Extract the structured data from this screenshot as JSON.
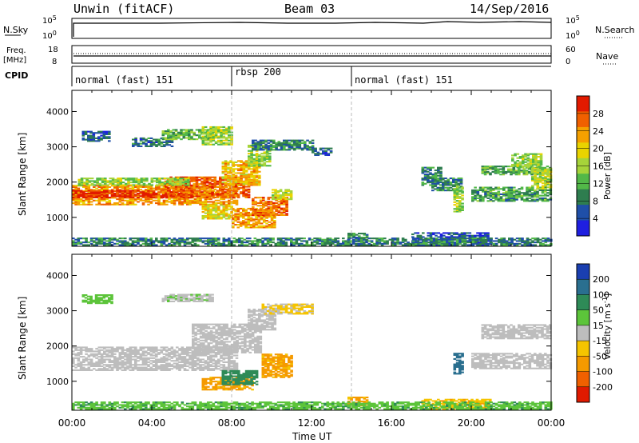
{
  "header": {
    "station": "Unwin (fitACF)",
    "beam": "Beam 03",
    "date": "14/Sep/2016"
  },
  "top_panels": {
    "nsky_label": "N.Sky",
    "nsky_ticks": [
      "10^5",
      "10^0"
    ],
    "nsearch_label": "N.Search",
    "nsearch_ticks": [
      "10^5",
      "10^0"
    ],
    "freq_label_1": "Freq.",
    "freq_label_2": "[MHz]",
    "freq_ticks": [
      "18",
      "8"
    ],
    "nave_label": "Nave",
    "nave_ticks": [
      "60",
      "0"
    ],
    "cpid_label": "CPID",
    "cpid_segments": [
      {
        "label": "normal (fast) 151",
        "start": 0,
        "end": 8
      },
      {
        "label": "rbsp 200",
        "start": 8,
        "end": 14
      },
      {
        "label": "normal (fast) 151",
        "start": 14,
        "end": 24
      }
    ]
  },
  "chart_data": [
    {
      "type": "heatmap",
      "title": "",
      "xlabel": "Time UT",
      "ylabel": "Slant Range [km]",
      "xlim": [
        0,
        24
      ],
      "ylim": [
        180,
        4600
      ],
      "x_ticks": [
        "00:00",
        "04:00",
        "08:00",
        "12:00",
        "16:00",
        "20:00",
        "00:00"
      ],
      "y_ticks": [
        "1000",
        "2000",
        "3000",
        "4000"
      ],
      "colorbar": {
        "label": "Power [dB]",
        "ticks": [
          "4",
          "8",
          "12",
          "16",
          "20",
          "24",
          "28"
        ],
        "range": [
          0,
          30
        ],
        "colors": [
          "#1f1fe0",
          "#1f4fa8",
          "#2e7d4f",
          "#52b848",
          "#a6d43a",
          "#e9d400",
          "#f5a000",
          "#f06000",
          "#e21a00"
        ]
      },
      "regions": [
        {
          "t": [
            0.0,
            8.2
          ],
          "r": [
            1350,
            1900
          ],
          "v": 22
        },
        {
          "t": [
            0.0,
            6.0
          ],
          "r": [
            1550,
            1750
          ],
          "v": 28
        },
        {
          "t": [
            4.5,
            8.8
          ],
          "r": [
            1550,
            2150
          ],
          "v": 25
        },
        {
          "t": [
            7.5,
            9.4
          ],
          "r": [
            1900,
            2600
          ],
          "v": 20
        },
        {
          "t": [
            8.8,
            9.9
          ],
          "r": [
            2450,
            3050
          ],
          "v": 14
        },
        {
          "t": [
            0.3,
            5.8
          ],
          "r": [
            1900,
            2100
          ],
          "v": 14
        },
        {
          "t": [
            6.5,
            8.0
          ],
          "r": [
            950,
            1350
          ],
          "v": 18
        },
        {
          "t": [
            8.0,
            10.2
          ],
          "r": [
            700,
            1250
          ],
          "v": 22
        },
        {
          "t": [
            9.0,
            10.8
          ],
          "r": [
            1050,
            1550
          ],
          "v": 24
        },
        {
          "t": [
            10.0,
            11.0
          ],
          "r": [
            1500,
            1800
          ],
          "v": 16
        },
        {
          "t": [
            0.5,
            1.8
          ],
          "r": [
            3150,
            3450
          ],
          "v": 6
        },
        {
          "t": [
            3.0,
            5.0
          ],
          "r": [
            3000,
            3250
          ],
          "v": 7
        },
        {
          "t": [
            4.5,
            7.0
          ],
          "r": [
            3200,
            3500
          ],
          "v": 12
        },
        {
          "t": [
            6.5,
            8.0
          ],
          "r": [
            3050,
            3550
          ],
          "v": 15
        },
        {
          "t": [
            9.0,
            12.0
          ],
          "r": [
            2900,
            3200
          ],
          "v": 8
        },
        {
          "t": [
            12.0,
            13.0
          ],
          "r": [
            2750,
            2950
          ],
          "v": 6
        },
        {
          "t": [
            13.8,
            14.8
          ],
          "r": [
            300,
            550
          ],
          "v": 10
        },
        {
          "t": [
            17.5,
            18.5
          ],
          "r": [
            1900,
            2400
          ],
          "v": 8
        },
        {
          "t": [
            18.0,
            19.5
          ],
          "r": [
            1750,
            2100
          ],
          "v": 8
        },
        {
          "t": [
            19.1,
            19.6
          ],
          "r": [
            1150,
            1900
          ],
          "v": 14
        },
        {
          "t": [
            20.0,
            24.0
          ],
          "r": [
            1450,
            1850
          ],
          "v": 10
        },
        {
          "t": [
            20.5,
            24.0
          ],
          "r": [
            2200,
            2450
          ],
          "v": 12
        },
        {
          "t": [
            22.0,
            23.5
          ],
          "r": [
            2400,
            2800
          ],
          "v": 14
        },
        {
          "t": [
            23.0,
            24.0
          ],
          "r": [
            1800,
            2400
          ],
          "v": 16
        },
        {
          "t": [
            17.0,
            21.0
          ],
          "r": [
            200,
            550
          ],
          "v": 5
        },
        {
          "t": [
            0.0,
            24.0
          ],
          "r": [
            200,
            400
          ],
          "v": 8
        }
      ]
    },
    {
      "type": "heatmap",
      "title": "",
      "xlabel": "Time UT",
      "ylabel": "Slant Range [km]",
      "xlim": [
        0,
        24
      ],
      "ylim": [
        180,
        4600
      ],
      "x_ticks": [
        "00:00",
        "04:00",
        "08:00",
        "12:00",
        "16:00",
        "20:00",
        "00:00"
      ],
      "y_ticks": [
        "1000",
        "2000",
        "3000",
        "4000"
      ],
      "colorbar": {
        "label": "Velocity [m s^-1]",
        "ticks": [
          "200",
          "100",
          "50",
          "15",
          "-15",
          "-50",
          "-100",
          "-200"
        ],
        "colors": [
          "#1a3fb0",
          "#2a6f8f",
          "#2e8b57",
          "#5cc43a",
          "#bdbdbd",
          "#f5c400",
          "#f59a00",
          "#f06000",
          "#e01a00"
        ]
      },
      "regions": [
        {
          "t": [
            0.0,
            8.3
          ],
          "r": [
            1300,
            1950
          ],
          "v": 0
        },
        {
          "t": [
            6.0,
            9.5
          ],
          "r": [
            1800,
            2600
          ],
          "v": 0
        },
        {
          "t": [
            8.8,
            10.2
          ],
          "r": [
            2450,
            3050
          ],
          "v": 0
        },
        {
          "t": [
            9.5,
            11.0
          ],
          "r": [
            1100,
            1750
          ],
          "v": -60
        },
        {
          "t": [
            6.5,
            9.0
          ],
          "r": [
            750,
            1100
          ],
          "v": -60
        },
        {
          "t": [
            7.5,
            9.2
          ],
          "r": [
            900,
            1300
          ],
          "v": 80
        },
        {
          "t": [
            4.5,
            7.0
          ],
          "r": [
            3250,
            3450
          ],
          "v": 5
        },
        {
          "t": [
            0.5,
            2.0
          ],
          "r": [
            3200,
            3450
          ],
          "v": 30
        },
        {
          "t": [
            9.5,
            12.0
          ],
          "r": [
            2900,
            3200
          ],
          "v": -20
        },
        {
          "t": [
            13.8,
            14.8
          ],
          "r": [
            300,
            550
          ],
          "v": -60
        },
        {
          "t": [
            19.1,
            19.6
          ],
          "r": [
            1200,
            1800
          ],
          "v": 150
        },
        {
          "t": [
            20.0,
            24.0
          ],
          "r": [
            1350,
            1800
          ],
          "v": 0
        },
        {
          "t": [
            20.5,
            24.0
          ],
          "r": [
            2200,
            2600
          ],
          "v": 0
        },
        {
          "t": [
            17.5,
            21.0
          ],
          "r": [
            200,
            500
          ],
          "v": -40
        },
        {
          "t": [
            0.0,
            24.0
          ],
          "r": [
            200,
            400
          ],
          "v": 40
        }
      ]
    }
  ]
}
